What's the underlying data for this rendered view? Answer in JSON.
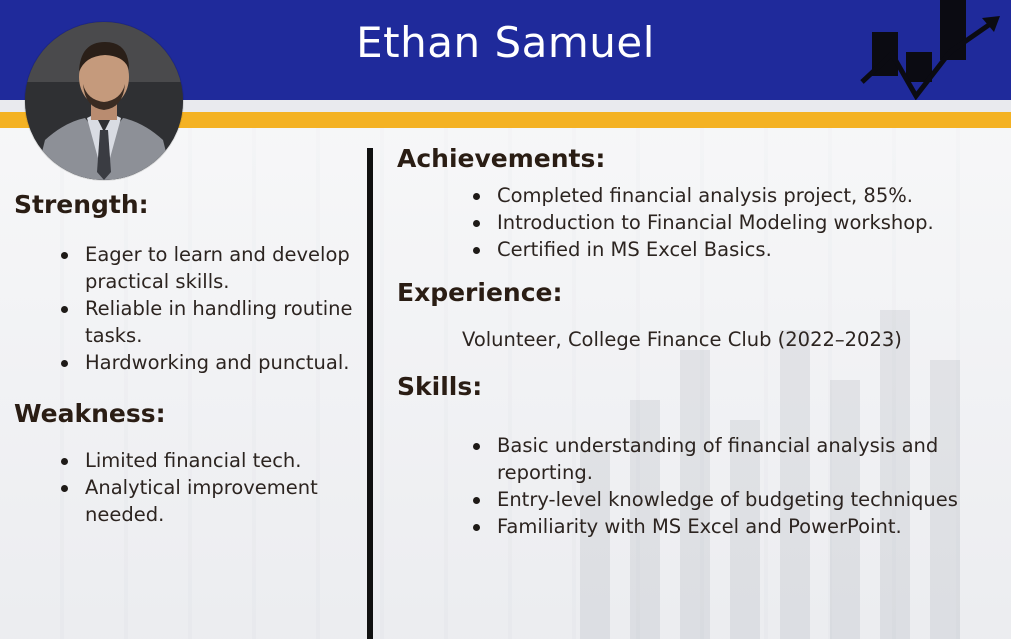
{
  "header": {
    "name": "Ethan Samuel"
  },
  "colors": {
    "header_blue": "#1f2a9b",
    "accent_gold": "#f4b223",
    "divider": "#111111"
  },
  "icons": {
    "profile": "avatar-photo",
    "logo": "bar-chart-growth-arrow-icon"
  },
  "strength": {
    "title": "Strength:",
    "items": [
      "Eager to learn and develop practical skills.",
      "Reliable in handling routine tasks.",
      "Hardworking and punctual."
    ]
  },
  "weakness": {
    "title": "Weakness:",
    "items": [
      "Limited financial tech.",
      "Analytical improvement needed."
    ]
  },
  "achievements": {
    "title": "Achievements:",
    "items": [
      "Completed financial analysis project, 85%.",
      "Introduction to Financial Modeling workshop.",
      "Certified in MS Excel Basics."
    ]
  },
  "experience": {
    "title": "Experience:",
    "text": "Volunteer, College Finance Club (2022–2023)"
  },
  "skills": {
    "title": "Skills:",
    "items": [
      "Basic understanding of financial analysis and reporting.",
      "Entry-level knowledge of budgeting techniques",
      "Familiarity with MS Excel and PowerPoint."
    ]
  }
}
